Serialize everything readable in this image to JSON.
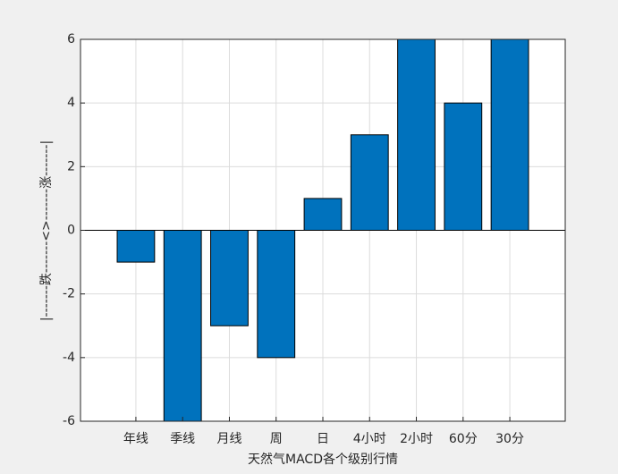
{
  "chart_data": {
    "type": "bar",
    "categories": [
      "年线",
      "季线",
      "月线",
      "周",
      "日",
      "4小时",
      "2小时",
      "60分",
      "30分"
    ],
    "values": [
      -1,
      -6,
      -3,
      -4,
      1,
      3,
      6,
      4,
      6
    ],
    "color": "#0072bd",
    "x_label": "天然气MACD各个级别行情",
    "y_label": "|-------跌-------<>-------涨-------|",
    "ylim": [
      -6,
      6
    ],
    "yticks": [
      -6,
      -4,
      -2,
      0,
      2,
      4,
      6
    ],
    "grid": true
  }
}
